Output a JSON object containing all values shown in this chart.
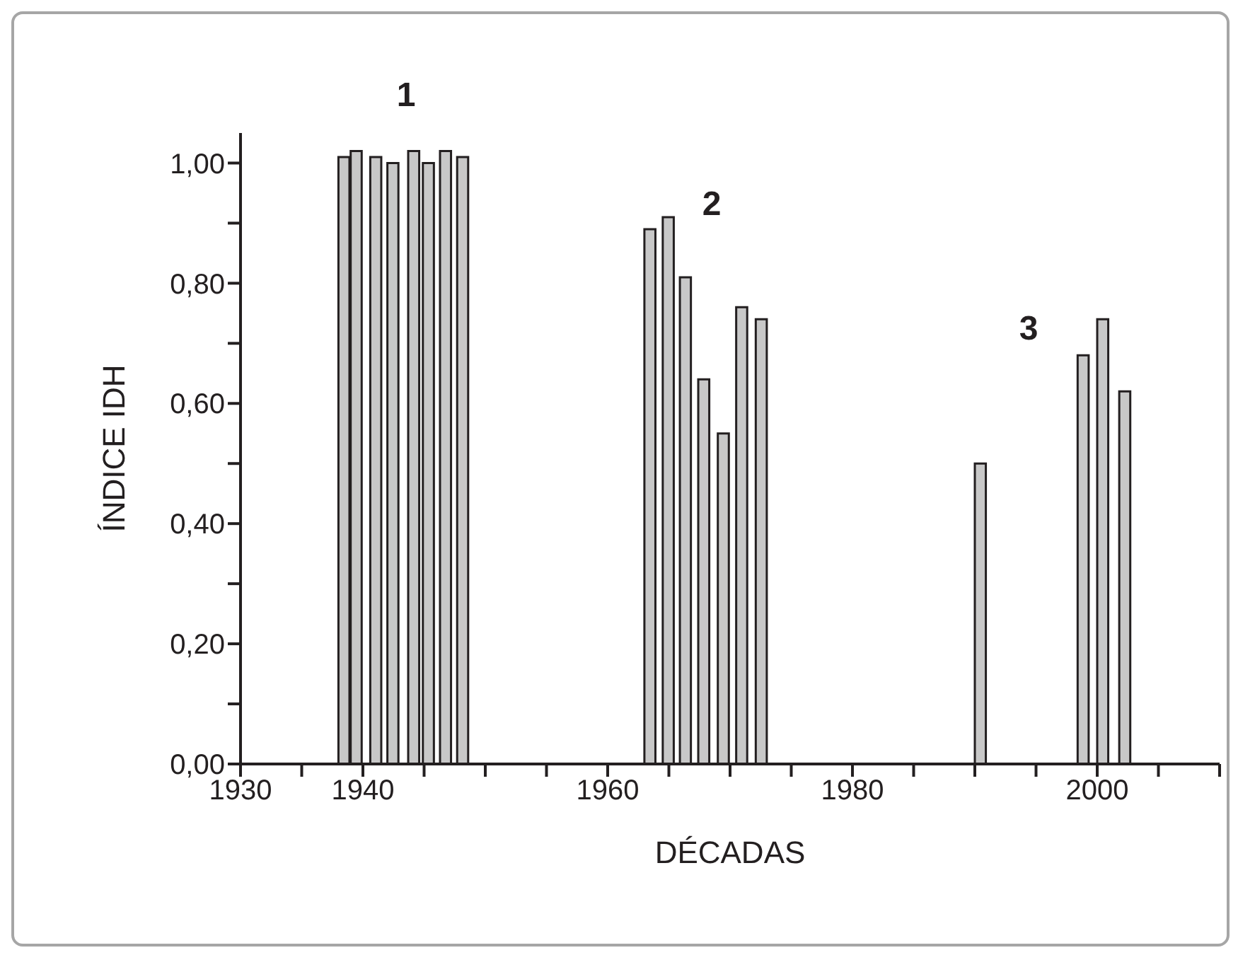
{
  "chart_data": {
    "type": "bar",
    "xlabel": "DÉCADAS",
    "ylabel": "ÍNDICE IDH",
    "x": [
      1938.5,
      1939.5,
      1941.1,
      1942.5,
      1944.2,
      1945.4,
      1946.8,
      1948.2,
      1963.5,
      1965.0,
      1966.4,
      1967.9,
      1969.5,
      1971.0,
      1972.6,
      1990.5,
      1998.9,
      2000.5,
      2002.3
    ],
    "values": [
      1.01,
      1.02,
      1.01,
      1.0,
      1.02,
      1.0,
      1.02,
      1.01,
      0.89,
      0.91,
      0.81,
      0.64,
      0.55,
      0.76,
      0.74,
      0.5,
      0.68,
      0.74,
      0.62
    ],
    "color": "#c8c8c8",
    "xlim": [
      1930,
      2010
    ],
    "xticks": [
      1930,
      {
        "value": 1935,
        "label": null
      },
      1940,
      {
        "value": 1945,
        "label": null
      },
      {
        "value": 1950,
        "label": null
      },
      {
        "value": 1955,
        "label": null
      },
      1960,
      {
        "value": 1965,
        "label": null
      },
      {
        "value": 1970,
        "label": null
      },
      {
        "value": 1975,
        "label": null
      },
      1980,
      {
        "value": 1985,
        "label": null
      },
      {
        "value": 1990,
        "label": null
      },
      {
        "value": 1995,
        "label": null
      },
      2000,
      {
        "value": 2005,
        "label": null
      },
      {
        "value": 2010,
        "label": null
      }
    ],
    "ylim": [
      0,
      1.05
    ],
    "yticks": [
      {
        "value": 0,
        "label": "0,00"
      },
      {
        "value": 0.1,
        "label": null
      },
      {
        "value": 0.2,
        "label": "0,20"
      },
      {
        "value": 0.3,
        "label": null
      },
      {
        "value": 0.4,
        "label": "0,40"
      },
      {
        "value": 0.5,
        "label": null
      },
      {
        "value": 0.6,
        "label": "0,60"
      },
      {
        "value": 0.7,
        "label": null
      },
      {
        "value": 0.8,
        "label": "0,80"
      },
      {
        "value": 0.9,
        "label": null
      },
      {
        "value": 1.0,
        "label": "1,00"
      }
    ],
    "annotations": [
      "1",
      "2",
      "3"
    ],
    "grid": false,
    "legend": false
  }
}
